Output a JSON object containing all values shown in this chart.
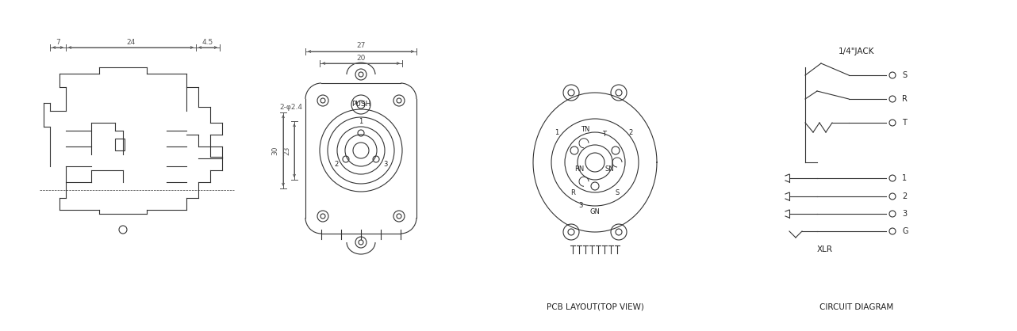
{
  "bg_color": "#ffffff",
  "line_color": "#333333",
  "dim_color": "#555555",
  "text_color": "#222222",
  "title_bottom_left": "PCB LAYOUT(TOP VIEW)",
  "title_bottom_right": "CIRCUIT DIAGRAM",
  "dim_labels": {
    "d7": "7",
    "d24": "24",
    "d4_5": "4.5",
    "d27": "27",
    "d20": "20",
    "d2phi24": "2-φ2.4",
    "d30": "30",
    "d23": "23",
    "push": "PUSH"
  },
  "circuit_labels": {
    "jack": "1/4\"JACK",
    "xlr": "XLR",
    "S": "S",
    "R": "R",
    "T": "T",
    "1": "1",
    "2": "2",
    "3": "3",
    "G": "G"
  }
}
